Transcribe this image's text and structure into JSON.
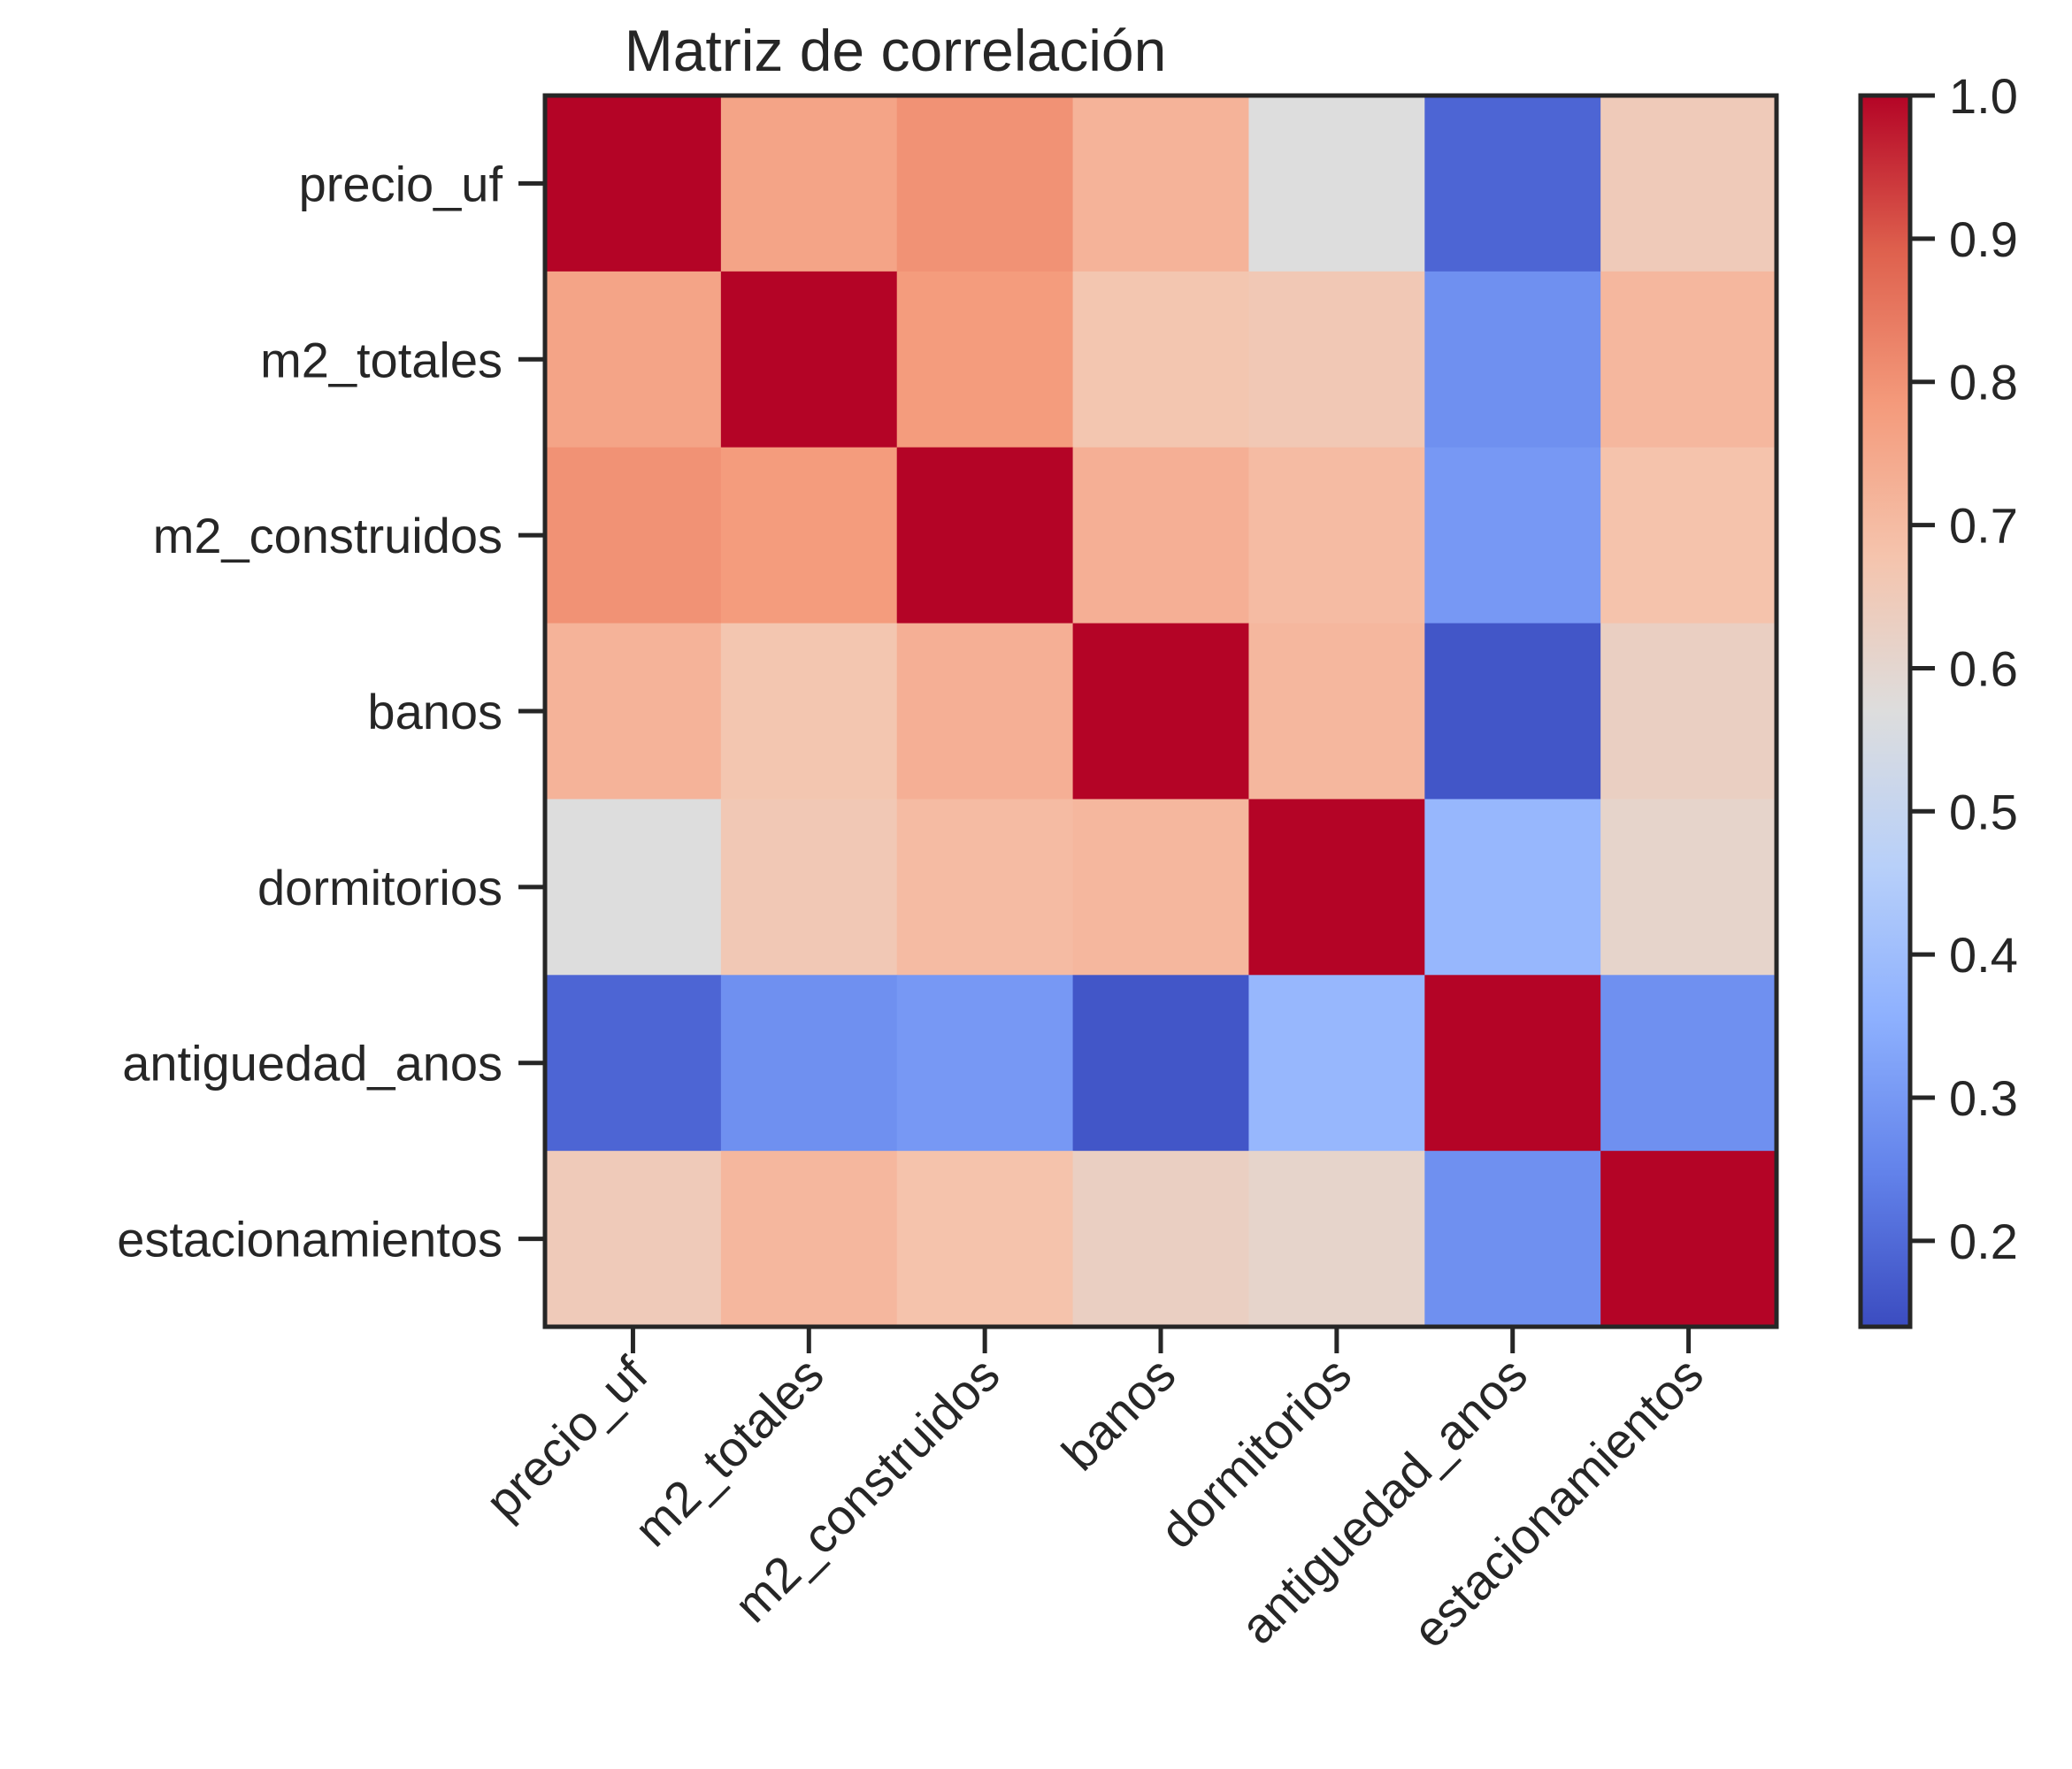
{
  "chart_data": {
    "type": "heatmap",
    "title": "Matriz de correlación",
    "rows": [
      "precio_uf",
      "m2_totales",
      "m2_construidos",
      "banos",
      "dormitorios",
      "antiguedad_anos",
      "estacionamientos"
    ],
    "columns": [
      "precio_uf",
      "m2_totales",
      "m2_construidos",
      "banos",
      "dormitorios",
      "antiguedad_anos",
      "estacionamientos"
    ],
    "values": [
      [
        1.0,
        0.76,
        0.8,
        0.72,
        0.57,
        0.19,
        0.65
      ],
      [
        0.76,
        1.0,
        0.78,
        0.67,
        0.66,
        0.28,
        0.71
      ],
      [
        0.8,
        0.78,
        1.0,
        0.73,
        0.7,
        0.3,
        0.68
      ],
      [
        0.72,
        0.67,
        0.73,
        1.0,
        0.71,
        0.16,
        0.63
      ],
      [
        0.57,
        0.66,
        0.7,
        0.71,
        1.0,
        0.38,
        0.61
      ],
      [
        0.19,
        0.28,
        0.3,
        0.16,
        0.38,
        1.0,
        0.28
      ],
      [
        0.65,
        0.71,
        0.68,
        0.63,
        0.61,
        0.28,
        1.0
      ]
    ],
    "colormap": "coolwarm",
    "vmin": 0.14,
    "vmax": 1.0,
    "colorbar": {
      "ticks": [
        1.0,
        0.9,
        0.8,
        0.7,
        0.6,
        0.5,
        0.4,
        0.3,
        0.2
      ],
      "tick_labels": [
        "1.0",
        "0.9",
        "0.8",
        "0.7",
        "0.6",
        "0.5",
        "0.4",
        "0.3",
        "0.2"
      ],
      "placement": "right"
    },
    "grid": false,
    "xtick_rotation": -45
  }
}
